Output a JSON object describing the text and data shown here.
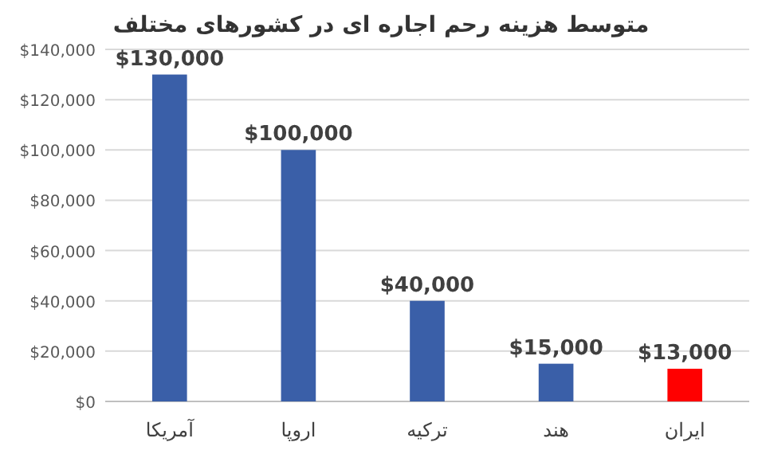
{
  "chart_data": {
    "type": "bar",
    "title": "متوسط هزینه رحم اجاره ای در کشورهای مختلف",
    "categories": [
      "آمریکا",
      "اروپا",
      "ترکیه",
      "هند",
      "ایران"
    ],
    "values": [
      130000,
      100000,
      40000,
      15000,
      13000
    ],
    "colors": [
      "#3a5fa8",
      "#3a5fa8",
      "#3a5fa8",
      "#3a5fa8",
      "#ff0000"
    ],
    "value_labels": [
      "$130,000",
      "$100,000",
      "$40,000",
      "$15,000",
      "$13,000"
    ],
    "ylim": [
      0,
      140000
    ],
    "yticks": [
      {
        "value": 0,
        "label": "$0"
      },
      {
        "value": 20000,
        "label": "$20,000"
      },
      {
        "value": 40000,
        "label": "$40,000"
      },
      {
        "value": 60000,
        "label": "$60,000"
      },
      {
        "value": 80000,
        "label": "$80,000"
      },
      {
        "value": 100000,
        "label": "$100,000"
      },
      {
        "value": 120000,
        "label": "$120,000"
      },
      {
        "value": 140000,
        "label": "$140,000"
      }
    ],
    "grid": "y"
  }
}
